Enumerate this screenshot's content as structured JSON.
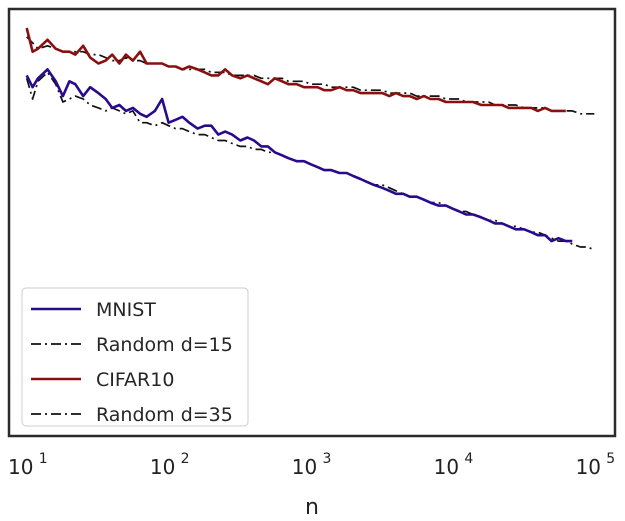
{
  "chart_data": {
    "type": "line",
    "title": "",
    "xlabel": "n",
    "ylabel": "",
    "xscale": "log",
    "xlim": [
      7.5,
      140000
    ],
    "ylim": [
      0,
      1
    ],
    "grid": false,
    "legend_position": "lower-left",
    "x_ticks": [
      {
        "base": "10",
        "exp": "1",
        "value": 10
      },
      {
        "base": "10",
        "exp": "2",
        "value": 100
      },
      {
        "base": "10",
        "exp": "3",
        "value": 1000
      },
      {
        "base": "10",
        "exp": "4",
        "value": 10000
      },
      {
        "base": "10",
        "exp": "5",
        "value": 100000
      }
    ],
    "series": [
      {
        "name": "MNIST",
        "label": "MNIST",
        "color": "#2a0a8c",
        "style": "solid",
        "x": [
          10,
          11,
          12,
          14,
          16,
          18,
          20,
          22,
          25,
          28,
          32,
          36,
          40,
          45,
          50,
          56,
          63,
          70,
          80,
          90,
          100,
          112,
          125,
          140,
          160,
          180,
          200,
          224,
          250,
          280,
          320,
          360,
          400,
          450,
          500,
          560,
          630,
          700,
          800,
          900,
          1000,
          1120,
          1250,
          1400,
          1600,
          1800,
          2000,
          2250,
          2500,
          2800,
          3200,
          3600,
          4000,
          4500,
          5000,
          5600,
          6300,
          7000,
          8000,
          9000,
          10000,
          11200,
          12500,
          14000,
          16000,
          18000,
          20000,
          22400,
          25000,
          28000,
          32000,
          36000,
          40000,
          45000,
          50000,
          56000,
          63000,
          70000
        ],
        "values": [
          0.84,
          0.8,
          0.83,
          0.86,
          0.82,
          0.77,
          0.82,
          0.81,
          0.77,
          0.8,
          0.78,
          0.76,
          0.73,
          0.74,
          0.72,
          0.73,
          0.71,
          0.7,
          0.72,
          0.76,
          0.68,
          0.69,
          0.7,
          0.68,
          0.66,
          0.67,
          0.67,
          0.64,
          0.65,
          0.64,
          0.62,
          0.63,
          0.62,
          0.6,
          0.6,
          0.58,
          0.57,
          0.56,
          0.55,
          0.55,
          0.54,
          0.53,
          0.52,
          0.52,
          0.51,
          0.51,
          0.5,
          0.49,
          0.48,
          0.47,
          0.46,
          0.45,
          0.44,
          0.44,
          0.43,
          0.43,
          0.42,
          0.41,
          0.4,
          0.4,
          0.39,
          0.38,
          0.37,
          0.37,
          0.36,
          0.35,
          0.34,
          0.34,
          0.33,
          0.32,
          0.32,
          0.31,
          0.3,
          0.3,
          0.28,
          0.29,
          0.28,
          0.28
        ]
      },
      {
        "name": "Random d=15",
        "label": "Random d=15",
        "color": "#111111",
        "style": "dashdot",
        "x": [
          10,
          11,
          12,
          14,
          16,
          18,
          20,
          22,
          25,
          28,
          32,
          36,
          40,
          45,
          50,
          56,
          63,
          70,
          80,
          90,
          100,
          112,
          125,
          140,
          160,
          180,
          200,
          224,
          250,
          280,
          320,
          360,
          400,
          450,
          500,
          560,
          630,
          700,
          800,
          900,
          1000,
          1120,
          1250,
          1400,
          1600,
          1800,
          2000,
          2250,
          2500,
          2800,
          3200,
          3600,
          4000,
          4500,
          5000,
          5600,
          6300,
          7000,
          8000,
          9000,
          10000,
          11200,
          12500,
          14000,
          16000,
          18000,
          20000,
          22400,
          25000,
          28000,
          32000,
          36000,
          40000,
          45000,
          50000,
          56000,
          63000,
          70000,
          80000,
          90000,
          100000
        ],
        "values": [
          0.83,
          0.76,
          0.82,
          0.85,
          0.81,
          0.75,
          0.76,
          0.77,
          0.76,
          0.74,
          0.73,
          0.72,
          0.73,
          0.72,
          0.71,
          0.72,
          0.68,
          0.68,
          0.67,
          0.68,
          0.67,
          0.66,
          0.66,
          0.65,
          0.64,
          0.64,
          0.63,
          0.62,
          0.62,
          0.61,
          0.6,
          0.6,
          0.59,
          0.59,
          0.58,
          0.58,
          0.57,
          0.56,
          0.55,
          0.55,
          0.54,
          0.53,
          0.52,
          0.52,
          0.51,
          0.51,
          0.5,
          0.49,
          0.48,
          0.47,
          0.47,
          0.46,
          0.45,
          0.44,
          0.43,
          0.43,
          0.42,
          0.41,
          0.41,
          0.4,
          0.39,
          0.38,
          0.38,
          0.37,
          0.36,
          0.35,
          0.35,
          0.34,
          0.33,
          0.33,
          0.32,
          0.31,
          0.31,
          0.3,
          0.29,
          0.28,
          0.28,
          0.27,
          0.26,
          0.26,
          0.25
        ]
      },
      {
        "name": "CIFAR10",
        "label": "CIFAR10",
        "color": "#8b0f0f",
        "style": "solid",
        "x": [
          10,
          11,
          12,
          14,
          16,
          18,
          20,
          22,
          25,
          28,
          32,
          36,
          40,
          45,
          50,
          56,
          63,
          70,
          80,
          90,
          100,
          112,
          125,
          140,
          160,
          180,
          200,
          224,
          250,
          280,
          320,
          360,
          400,
          450,
          500,
          560,
          630,
          700,
          800,
          900,
          1000,
          1120,
          1250,
          1400,
          1600,
          1800,
          2000,
          2250,
          2500,
          2800,
          3200,
          3600,
          4000,
          4500,
          5000,
          5600,
          6300,
          7000,
          8000,
          9000,
          10000,
          11200,
          12500,
          14000,
          16000,
          18000,
          20000,
          22400,
          25000,
          28000,
          32000,
          36000,
          40000,
          45000,
          50000,
          56000,
          63000
        ],
        "values": [
          1.0,
          0.92,
          0.93,
          0.96,
          0.93,
          0.92,
          0.92,
          0.91,
          0.94,
          0.9,
          0.88,
          0.89,
          0.91,
          0.88,
          0.91,
          0.89,
          0.92,
          0.88,
          0.88,
          0.88,
          0.87,
          0.87,
          0.86,
          0.87,
          0.86,
          0.85,
          0.84,
          0.84,
          0.86,
          0.84,
          0.83,
          0.84,
          0.83,
          0.82,
          0.81,
          0.83,
          0.82,
          0.81,
          0.81,
          0.8,
          0.8,
          0.8,
          0.79,
          0.79,
          0.8,
          0.79,
          0.79,
          0.78,
          0.78,
          0.78,
          0.78,
          0.77,
          0.78,
          0.77,
          0.77,
          0.76,
          0.77,
          0.76,
          0.76,
          0.75,
          0.75,
          0.75,
          0.75,
          0.75,
          0.74,
          0.74,
          0.74,
          0.74,
          0.73,
          0.73,
          0.73,
          0.73,
          0.72,
          0.73,
          0.72,
          0.72,
          0.72
        ]
      },
      {
        "name": "Random d=35",
        "label": "Random d=35",
        "color": "#111111",
        "style": "dashdot",
        "x": [
          10,
          11,
          12,
          14,
          16,
          18,
          20,
          22,
          25,
          28,
          32,
          36,
          40,
          45,
          50,
          56,
          63,
          70,
          80,
          90,
          100,
          112,
          125,
          140,
          160,
          180,
          200,
          224,
          250,
          280,
          320,
          360,
          400,
          450,
          500,
          560,
          630,
          700,
          800,
          900,
          1000,
          1120,
          1250,
          1400,
          1600,
          1800,
          2000,
          2250,
          2500,
          2800,
          3200,
          3600,
          4000,
          4500,
          5000,
          5600,
          6300,
          7000,
          8000,
          9000,
          10000,
          11200,
          12500,
          14000,
          16000,
          18000,
          20000,
          22400,
          25000,
          28000,
          32000,
          36000,
          40000,
          45000,
          50000,
          56000,
          63000,
          70000,
          80000,
          90000,
          100000
        ],
        "values": [
          0.97,
          0.95,
          0.93,
          0.94,
          0.93,
          0.92,
          0.92,
          0.92,
          0.92,
          0.91,
          0.91,
          0.9,
          0.89,
          0.89,
          0.9,
          0.89,
          0.89,
          0.88,
          0.88,
          0.88,
          0.87,
          0.87,
          0.86,
          0.86,
          0.86,
          0.86,
          0.85,
          0.85,
          0.85,
          0.84,
          0.84,
          0.84,
          0.84,
          0.83,
          0.83,
          0.83,
          0.83,
          0.82,
          0.82,
          0.82,
          0.81,
          0.81,
          0.81,
          0.8,
          0.8,
          0.8,
          0.8,
          0.79,
          0.79,
          0.79,
          0.79,
          0.78,
          0.78,
          0.78,
          0.78,
          0.77,
          0.77,
          0.77,
          0.77,
          0.76,
          0.76,
          0.76,
          0.75,
          0.75,
          0.75,
          0.75,
          0.74,
          0.74,
          0.74,
          0.74,
          0.73,
          0.73,
          0.73,
          0.73,
          0.72,
          0.72,
          0.72,
          0.72,
          0.71,
          0.71,
          0.71
        ]
      }
    ]
  }
}
